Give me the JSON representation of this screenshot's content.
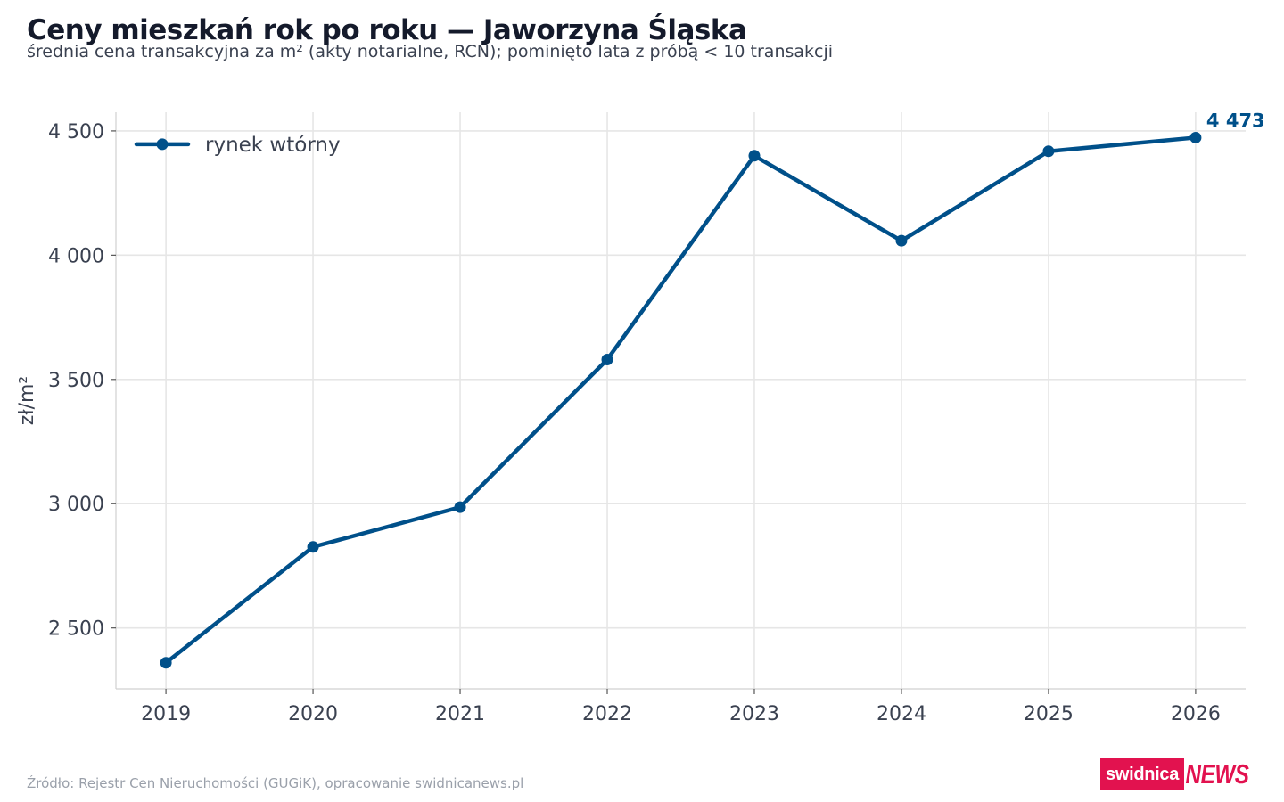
{
  "title": "Ceny mieszkań rok po roku — Jaworzyna Śląska",
  "subtitle": "średnia cena transakcyjna za m² (akty notarialne, RCN); pominięto lata z próbą < 10 transakcji",
  "source": "Źródło: Rejestr Cen Nieruchomości (GUGiK), opracowanie swidnicanews.pl",
  "brand": {
    "part1": "swidnica",
    "part2": "NEWS",
    "color": "#e2124f"
  },
  "colors": {
    "series": "#00508a",
    "grid": "#e6e6e6",
    "axis": "#d0d0d0",
    "tick_text": "#3a4150"
  },
  "chart_data": {
    "type": "line",
    "x": [
      2019,
      2020,
      2021,
      2022,
      2023,
      2024,
      2025,
      2026
    ],
    "xlim": [
      2018.66,
      2026.34
    ],
    "ylim": [
      2255,
      4575
    ],
    "yticks": [
      2500,
      3000,
      3500,
      4000,
      4500
    ],
    "ytick_labels": [
      "2 500",
      "3 000",
      "3 500",
      "4 000",
      "4 500"
    ],
    "xtick_labels": [
      "2019",
      "2020",
      "2021",
      "2022",
      "2023",
      "2024",
      "2025",
      "2026"
    ],
    "ylabel": "zł/m²",
    "xlabel": "",
    "grid": true,
    "legend": {
      "position": "top-left"
    },
    "series": [
      {
        "name": "rynek wtórny",
        "values": [
          2360,
          2826,
          2986,
          3580,
          4400,
          4058,
          4418,
          4473
        ],
        "end_label": "4 473"
      }
    ]
  }
}
